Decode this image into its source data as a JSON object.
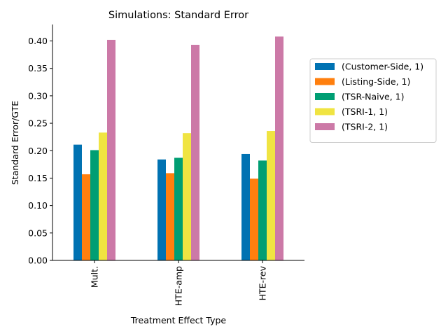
{
  "chart_data": {
    "type": "bar",
    "title": "Simulations: Standard Error",
    "xlabel": "Treatment Effect Type",
    "ylabel": "Standard Error/GTE",
    "categories": [
      "Mult.",
      "HTE-amp",
      "HTE-rev"
    ],
    "ylim": [
      0,
      0.43
    ],
    "yticks": [
      0.0,
      0.05,
      0.1,
      0.15,
      0.2,
      0.25,
      0.3,
      0.35,
      0.4
    ],
    "ytick_labels": [
      "0.00",
      "0.05",
      "0.10",
      "0.15",
      "0.20",
      "0.25",
      "0.30",
      "0.35",
      "0.40"
    ],
    "grid": false,
    "legend_position": "right",
    "series": [
      {
        "name": "(Customer-Side, 1)",
        "color": "#0072b2",
        "values": [
          0.211,
          0.184,
          0.194
        ]
      },
      {
        "name": "(Listing-Side, 1)",
        "color": "#ff7f0e",
        "values": [
          0.157,
          0.159,
          0.149
        ]
      },
      {
        "name": "(TSR-Naive, 1)",
        "color": "#009e73",
        "values": [
          0.201,
          0.187,
          0.182
        ]
      },
      {
        "name": "(TSRI-1, 1)",
        "color": "#f0e442",
        "values": [
          0.233,
          0.232,
          0.236
        ]
      },
      {
        "name": "(TSRI-2, 1)",
        "color": "#cc79a7",
        "values": [
          0.402,
          0.393,
          0.408
        ]
      }
    ]
  }
}
